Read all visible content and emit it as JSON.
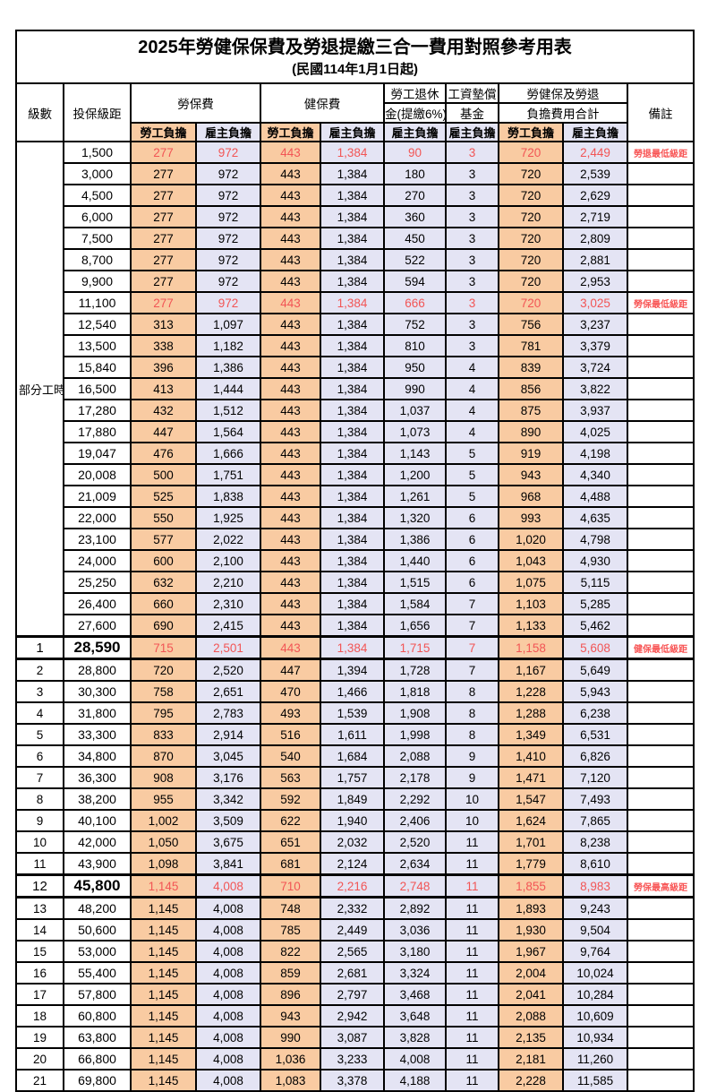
{
  "title": "2025年勞健保保費及勞退提繳三合一費用對照參考用表",
  "subtitle": "(民國114年1月1日起)",
  "header": {
    "level": "級數",
    "bracket": "投保級距",
    "labor_insurance": "勞保費",
    "health_insurance": "健保費",
    "pension_line1": "勞工退休",
    "pension_line2": "金(提繳6%)",
    "wage_fund_line1": "工資墊償",
    "wage_fund_line2": "基金",
    "total_line1": "勞健保及勞退",
    "total_line2": "負擔費用合計",
    "remark": "備註",
    "employee_label": "勞工負擔",
    "employer_label": "雇主負擔"
  },
  "colors": {
    "employee_bg": "#f9cba2",
    "employer_bg": "#e4e4f4",
    "highlight_red": "#f25555",
    "border": "#000000"
  },
  "part_time_label": "部分工時",
  "part_time_row_count": 23,
  "rows": [
    {
      "bracket": "1,500",
      "li_emp": "277",
      "li_er": "972",
      "hi_emp": "443",
      "hi_er": "1,384",
      "pension": "90",
      "fund": "3",
      "tot_emp": "720",
      "tot_er": "2,449",
      "note": "勞退最低級距",
      "red": true
    },
    {
      "bracket": "3,000",
      "li_emp": "277",
      "li_er": "972",
      "hi_emp": "443",
      "hi_er": "1,384",
      "pension": "180",
      "fund": "3",
      "tot_emp": "720",
      "tot_er": "2,539",
      "note": ""
    },
    {
      "bracket": "4,500",
      "li_emp": "277",
      "li_er": "972",
      "hi_emp": "443",
      "hi_er": "1,384",
      "pension": "270",
      "fund": "3",
      "tot_emp": "720",
      "tot_er": "2,629",
      "note": ""
    },
    {
      "bracket": "6,000",
      "li_emp": "277",
      "li_er": "972",
      "hi_emp": "443",
      "hi_er": "1,384",
      "pension": "360",
      "fund": "3",
      "tot_emp": "720",
      "tot_er": "2,719",
      "note": ""
    },
    {
      "bracket": "7,500",
      "li_emp": "277",
      "li_er": "972",
      "hi_emp": "443",
      "hi_er": "1,384",
      "pension": "450",
      "fund": "3",
      "tot_emp": "720",
      "tot_er": "2,809",
      "note": ""
    },
    {
      "bracket": "8,700",
      "li_emp": "277",
      "li_er": "972",
      "hi_emp": "443",
      "hi_er": "1,384",
      "pension": "522",
      "fund": "3",
      "tot_emp": "720",
      "tot_er": "2,881",
      "note": ""
    },
    {
      "bracket": "9,900",
      "li_emp": "277",
      "li_er": "972",
      "hi_emp": "443",
      "hi_er": "1,384",
      "pension": "594",
      "fund": "3",
      "tot_emp": "720",
      "tot_er": "2,953",
      "note": ""
    },
    {
      "bracket": "11,100",
      "li_emp": "277",
      "li_er": "972",
      "hi_emp": "443",
      "hi_er": "1,384",
      "pension": "666",
      "fund": "3",
      "tot_emp": "720",
      "tot_er": "3,025",
      "note": "勞保最低級距",
      "red": true
    },
    {
      "bracket": "12,540",
      "li_emp": "313",
      "li_er": "1,097",
      "hi_emp": "443",
      "hi_er": "1,384",
      "pension": "752",
      "fund": "3",
      "tot_emp": "756",
      "tot_er": "3,237",
      "note": ""
    },
    {
      "bracket": "13,500",
      "li_emp": "338",
      "li_er": "1,182",
      "hi_emp": "443",
      "hi_er": "1,384",
      "pension": "810",
      "fund": "3",
      "tot_emp": "781",
      "tot_er": "3,379",
      "note": ""
    },
    {
      "bracket": "15,840",
      "li_emp": "396",
      "li_er": "1,386",
      "hi_emp": "443",
      "hi_er": "1,384",
      "pension": "950",
      "fund": "4",
      "tot_emp": "839",
      "tot_er": "3,724",
      "note": ""
    },
    {
      "bracket": "16,500",
      "li_emp": "413",
      "li_er": "1,444",
      "hi_emp": "443",
      "hi_er": "1,384",
      "pension": "990",
      "fund": "4",
      "tot_emp": "856",
      "tot_er": "3,822",
      "note": ""
    },
    {
      "bracket": "17,280",
      "li_emp": "432",
      "li_er": "1,512",
      "hi_emp": "443",
      "hi_er": "1,384",
      "pension": "1,037",
      "fund": "4",
      "tot_emp": "875",
      "tot_er": "3,937",
      "note": ""
    },
    {
      "bracket": "17,880",
      "li_emp": "447",
      "li_er": "1,564",
      "hi_emp": "443",
      "hi_er": "1,384",
      "pension": "1,073",
      "fund": "4",
      "tot_emp": "890",
      "tot_er": "4,025",
      "note": ""
    },
    {
      "bracket": "19,047",
      "li_emp": "476",
      "li_er": "1,666",
      "hi_emp": "443",
      "hi_er": "1,384",
      "pension": "1,143",
      "fund": "5",
      "tot_emp": "919",
      "tot_er": "4,198",
      "note": ""
    },
    {
      "bracket": "20,008",
      "li_emp": "500",
      "li_er": "1,751",
      "hi_emp": "443",
      "hi_er": "1,384",
      "pension": "1,200",
      "fund": "5",
      "tot_emp": "943",
      "tot_er": "4,340",
      "note": ""
    },
    {
      "bracket": "21,009",
      "li_emp": "525",
      "li_er": "1,838",
      "hi_emp": "443",
      "hi_er": "1,384",
      "pension": "1,261",
      "fund": "5",
      "tot_emp": "968",
      "tot_er": "4,488",
      "note": ""
    },
    {
      "bracket": "22,000",
      "li_emp": "550",
      "li_er": "1,925",
      "hi_emp": "443",
      "hi_er": "1,384",
      "pension": "1,320",
      "fund": "6",
      "tot_emp": "993",
      "tot_er": "4,635",
      "note": ""
    },
    {
      "bracket": "23,100",
      "li_emp": "577",
      "li_er": "2,022",
      "hi_emp": "443",
      "hi_er": "1,384",
      "pension": "1,386",
      "fund": "6",
      "tot_emp": "1,020",
      "tot_er": "4,798",
      "note": ""
    },
    {
      "bracket": "24,000",
      "li_emp": "600",
      "li_er": "2,100",
      "hi_emp": "443",
      "hi_er": "1,384",
      "pension": "1,440",
      "fund": "6",
      "tot_emp": "1,043",
      "tot_er": "4,930",
      "note": ""
    },
    {
      "bracket": "25,250",
      "li_emp": "632",
      "li_er": "2,210",
      "hi_emp": "443",
      "hi_er": "1,384",
      "pension": "1,515",
      "fund": "6",
      "tot_emp": "1,075",
      "tot_er": "5,115",
      "note": ""
    },
    {
      "bracket": "26,400",
      "li_emp": "660",
      "li_er": "2,310",
      "hi_emp": "443",
      "hi_er": "1,384",
      "pension": "1,584",
      "fund": "7",
      "tot_emp": "1,103",
      "tot_er": "5,285",
      "note": ""
    },
    {
      "bracket": "27,600",
      "li_emp": "690",
      "li_er": "2,415",
      "hi_emp": "443",
      "hi_er": "1,384",
      "pension": "1,656",
      "fund": "7",
      "tot_emp": "1,133",
      "tot_er": "5,462",
      "note": ""
    },
    {
      "level": "1",
      "bracket": "28,590",
      "li_emp": "715",
      "li_er": "2,501",
      "hi_emp": "443",
      "hi_er": "1,384",
      "pension": "1,715",
      "fund": "7",
      "tot_emp": "1,158",
      "tot_er": "5,608",
      "note": "健保最低級距",
      "red": true,
      "strong": true
    },
    {
      "level": "2",
      "bracket": "28,800",
      "li_emp": "720",
      "li_er": "2,520",
      "hi_emp": "447",
      "hi_er": "1,394",
      "pension": "1,728",
      "fund": "7",
      "tot_emp": "1,167",
      "tot_er": "5,649",
      "note": ""
    },
    {
      "level": "3",
      "bracket": "30,300",
      "li_emp": "758",
      "li_er": "2,651",
      "hi_emp": "470",
      "hi_er": "1,466",
      "pension": "1,818",
      "fund": "8",
      "tot_emp": "1,228",
      "tot_er": "5,943",
      "note": ""
    },
    {
      "level": "4",
      "bracket": "31,800",
      "li_emp": "795",
      "li_er": "2,783",
      "hi_emp": "493",
      "hi_er": "1,539",
      "pension": "1,908",
      "fund": "8",
      "tot_emp": "1,288",
      "tot_er": "6,238",
      "note": ""
    },
    {
      "level": "5",
      "bracket": "33,300",
      "li_emp": "833",
      "li_er": "2,914",
      "hi_emp": "516",
      "hi_er": "1,611",
      "pension": "1,998",
      "fund": "8",
      "tot_emp": "1,349",
      "tot_er": "6,531",
      "note": ""
    },
    {
      "level": "6",
      "bracket": "34,800",
      "li_emp": "870",
      "li_er": "3,045",
      "hi_emp": "540",
      "hi_er": "1,684",
      "pension": "2,088",
      "fund": "9",
      "tot_emp": "1,410",
      "tot_er": "6,826",
      "note": ""
    },
    {
      "level": "7",
      "bracket": "36,300",
      "li_emp": "908",
      "li_er": "3,176",
      "hi_emp": "563",
      "hi_er": "1,757",
      "pension": "2,178",
      "fund": "9",
      "tot_emp": "1,471",
      "tot_er": "7,120",
      "note": ""
    },
    {
      "level": "8",
      "bracket": "38,200",
      "li_emp": "955",
      "li_er": "3,342",
      "hi_emp": "592",
      "hi_er": "1,849",
      "pension": "2,292",
      "fund": "10",
      "tot_emp": "1,547",
      "tot_er": "7,493",
      "note": ""
    },
    {
      "level": "9",
      "bracket": "40,100",
      "li_emp": "1,002",
      "li_er": "3,509",
      "hi_emp": "622",
      "hi_er": "1,940",
      "pension": "2,406",
      "fund": "10",
      "tot_emp": "1,624",
      "tot_er": "7,865",
      "note": ""
    },
    {
      "level": "10",
      "bracket": "42,000",
      "li_emp": "1,050",
      "li_er": "3,675",
      "hi_emp": "651",
      "hi_er": "2,032",
      "pension": "2,520",
      "fund": "11",
      "tot_emp": "1,701",
      "tot_er": "8,238",
      "note": ""
    },
    {
      "level": "11",
      "bracket": "43,900",
      "li_emp": "1,098",
      "li_er": "3,841",
      "hi_emp": "681",
      "hi_er": "2,124",
      "pension": "2,634",
      "fund": "11",
      "tot_emp": "1,779",
      "tot_er": "8,610",
      "note": ""
    },
    {
      "level": "12",
      "bracket": "45,800",
      "li_emp": "1,145",
      "li_er": "4,008",
      "hi_emp": "710",
      "hi_er": "2,216",
      "pension": "2,748",
      "fund": "11",
      "tot_emp": "1,855",
      "tot_er": "8,983",
      "note": "勞保最高級距",
      "red": true,
      "strong": true
    },
    {
      "level": "13",
      "bracket": "48,200",
      "li_emp": "1,145",
      "li_er": "4,008",
      "hi_emp": "748",
      "hi_er": "2,332",
      "pension": "2,892",
      "fund": "11",
      "tot_emp": "1,893",
      "tot_er": "9,243",
      "note": ""
    },
    {
      "level": "14",
      "bracket": "50,600",
      "li_emp": "1,145",
      "li_er": "4,008",
      "hi_emp": "785",
      "hi_er": "2,449",
      "pension": "3,036",
      "fund": "11",
      "tot_emp": "1,930",
      "tot_er": "9,504",
      "note": ""
    },
    {
      "level": "15",
      "bracket": "53,000",
      "li_emp": "1,145",
      "li_er": "4,008",
      "hi_emp": "822",
      "hi_er": "2,565",
      "pension": "3,180",
      "fund": "11",
      "tot_emp": "1,967",
      "tot_er": "9,764",
      "note": ""
    },
    {
      "level": "16",
      "bracket": "55,400",
      "li_emp": "1,145",
      "li_er": "4,008",
      "hi_emp": "859",
      "hi_er": "2,681",
      "pension": "3,324",
      "fund": "11",
      "tot_emp": "2,004",
      "tot_er": "10,024",
      "note": ""
    },
    {
      "level": "17",
      "bracket": "57,800",
      "li_emp": "1,145",
      "li_er": "4,008",
      "hi_emp": "896",
      "hi_er": "2,797",
      "pension": "3,468",
      "fund": "11",
      "tot_emp": "2,041",
      "tot_er": "10,284",
      "note": ""
    },
    {
      "level": "18",
      "bracket": "60,800",
      "li_emp": "1,145",
      "li_er": "4,008",
      "hi_emp": "943",
      "hi_er": "2,942",
      "pension": "3,648",
      "fund": "11",
      "tot_emp": "2,088",
      "tot_er": "10,609",
      "note": ""
    },
    {
      "level": "19",
      "bracket": "63,800",
      "li_emp": "1,145",
      "li_er": "4,008",
      "hi_emp": "990",
      "hi_er": "3,087",
      "pension": "3,828",
      "fund": "11",
      "tot_emp": "2,135",
      "tot_er": "10,934",
      "note": ""
    },
    {
      "level": "20",
      "bracket": "66,800",
      "li_emp": "1,145",
      "li_er": "4,008",
      "hi_emp": "1,036",
      "hi_er": "3,233",
      "pension": "4,008",
      "fund": "11",
      "tot_emp": "2,181",
      "tot_er": "11,260",
      "note": ""
    },
    {
      "level": "21",
      "bracket": "69,800",
      "li_emp": "1,145",
      "li_er": "4,008",
      "hi_emp": "1,083",
      "hi_er": "3,378",
      "pension": "4,188",
      "fund": "11",
      "tot_emp": "2,228",
      "tot_er": "11,585",
      "note": ""
    }
  ]
}
